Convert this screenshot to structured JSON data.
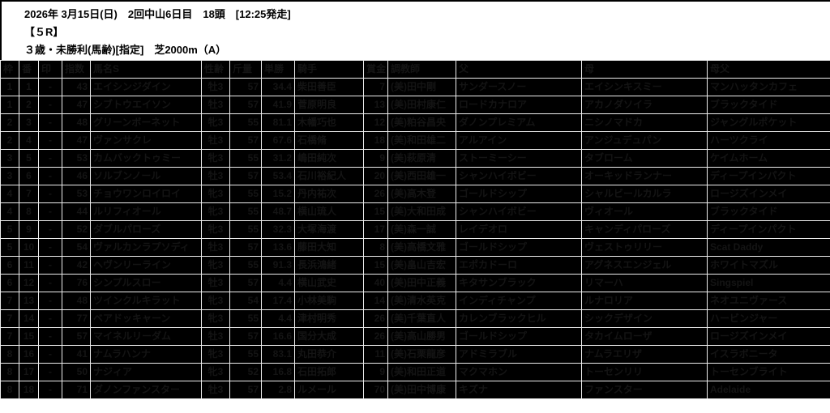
{
  "page": {
    "info_line1": "2026年 3月15日(日)　2回中山6日目　18頭　[12:25発走]",
    "race_number": "【５R】",
    "conditions": "３歳・未勝利(馬齢)[指定]　芝2000m（A）"
  },
  "colors": {
    "header_bg": "#ffffff",
    "header_text": "#000000",
    "table_bg": "#000000",
    "grid_line": "#ededed",
    "table_text": "#141414"
  },
  "table": {
    "columns": [
      {
        "key": "waku",
        "label": "枠",
        "width": 23,
        "align": "center"
      },
      {
        "key": "umaban",
        "label": "番",
        "width": 24,
        "align": "center"
      },
      {
        "key": "shirushi",
        "label": "印",
        "width": 29,
        "align": "center"
      },
      {
        "key": "shisu",
        "label": "指数",
        "width": 35,
        "align": "right"
      },
      {
        "key": "bamei",
        "label": "馬名S",
        "width": 137,
        "align": "left"
      },
      {
        "key": "seirei",
        "label": "性齢",
        "width": 35,
        "align": "center"
      },
      {
        "key": "kinryo",
        "label": "斤量",
        "width": 39,
        "align": "right"
      },
      {
        "key": "tansho",
        "label": "単勝",
        "width": 41,
        "align": "right"
      },
      {
        "key": "kishu",
        "label": "騎手",
        "width": 85,
        "align": "left"
      },
      {
        "key": "shokin",
        "label": "賞金",
        "width": 30,
        "align": "right"
      },
      {
        "key": "chokyoshi",
        "label": "調教師",
        "width": 84,
        "align": "left"
      },
      {
        "key": "chichi",
        "label": "父",
        "width": 155,
        "align": "left"
      },
      {
        "key": "haha",
        "label": "母",
        "width": 155,
        "align": "left"
      },
      {
        "key": "hahachichi",
        "label": "母父",
        "width": 152,
        "align": "left"
      }
    ],
    "rows": [
      [
        "1",
        "1",
        "-",
        "43",
        "エイシンジダイン",
        "牡3",
        "57",
        "34.4",
        "柴田善臣",
        "7",
        "(美)田中剛",
        "サンダースノー",
        "エイシンキスミー",
        "マンハッタンカフェ"
      ],
      [
        "1",
        "2",
        "-",
        "47",
        "シブトウエイソン",
        "牡3",
        "57",
        "41.9",
        "菅原明良",
        "13",
        "(美)田村康仁",
        "ロードカナロア",
        "アカノダソイラ",
        "ブラックタイド"
      ],
      [
        "2",
        "3",
        "-",
        "48",
        "グリーンボーネット",
        "牝3",
        "55",
        "81.1",
        "木幡巧也",
        "12",
        "(美)粕谷昌央",
        "ダノンプレミアム",
        "ニシノマドカ",
        "ジャングルポケット"
      ],
      [
        "2",
        "4",
        "-",
        "47",
        "ヴァンサクレ",
        "牡3",
        "57",
        "67.6",
        "石橋脩",
        "18",
        "(美)和田雄二",
        "アルアイン",
        "アンジュデュパン",
        "ハーツクライ"
      ],
      [
        "3",
        "5",
        "-",
        "53",
        "カムバックトゥミー",
        "牝3",
        "55",
        "31.2",
        "嶋田純次",
        "9",
        "(美)萩原清",
        "ストーミーシー",
        "タブローム",
        "ケイムホーム"
      ],
      [
        "3",
        "6",
        "-",
        "46",
        "ソルブンノール",
        "牡3",
        "57",
        "53.4",
        "石川裕紀人",
        "20",
        "(美)西田雄一",
        "シャンハイボビー",
        "オーキッドランナー",
        "ディープインパクト"
      ],
      [
        "4",
        "7",
        "-",
        "53",
        "チョウワンロイロイ",
        "牝3",
        "55",
        "15.2",
        "丹内祐次",
        "26",
        "(美)高木登",
        "ゴールドシップ",
        "シャルビールカルラ",
        "ロージズインメイ"
      ],
      [
        "4",
        "8",
        "-",
        "44",
        "ルリフィオール",
        "牝3",
        "55",
        "48.7",
        "横山琉人",
        "15",
        "(美)大和田成",
        "シャンハイボビー",
        "ヴィオール",
        "ブラックタイド"
      ],
      [
        "5",
        "9",
        "-",
        "52",
        "ダブルパローズ",
        "牝3",
        "55",
        "32.3",
        "大塚海渡",
        "17",
        "(美)森一誠",
        "レイデオロ",
        "キャンディパローズ",
        "ディープインパクト"
      ],
      [
        "5",
        "10",
        "-",
        "54",
        "ヴァルカンラプソディ",
        "牡3",
        "57",
        "13.6",
        "藤田大知",
        "8",
        "(美)高橋文雅",
        "ゴールドシップ",
        "ヴェストゥリリー",
        "Scat Daddy"
      ],
      [
        "6",
        "11",
        "-",
        "42",
        "ヘヴンリーライン",
        "牝3",
        "55",
        "91.3",
        "長浜鴻緒",
        "15",
        "(美)畠山吉宏",
        "エポカドーロ",
        "アグネスエンジェル",
        "ホワイトマズル"
      ],
      [
        "6",
        "12",
        "-",
        "76",
        "シンプルスロー",
        "牡3",
        "57",
        "4.4",
        "横山武史",
        "40",
        "(美)田中正義",
        "キタサンブラック",
        "リマーハ",
        "Singspiel"
      ],
      [
        "7",
        "13",
        "-",
        "48",
        "ツインクルキラット",
        "牝3",
        "54",
        "17.4",
        "小林美駒",
        "14",
        "(美)清水英克",
        "インディチャンプ",
        "ルナロリア",
        "ネオユニヴァース"
      ],
      [
        "7",
        "14",
        "-",
        "77",
        "ベアドッキャーン",
        "牝3",
        "55",
        "4.4",
        "津村明秀",
        "26",
        "(美)千葉直人",
        "カレンブラックヒル",
        "シックデザイン",
        "ハービンジャー"
      ],
      [
        "7",
        "15",
        "-",
        "57",
        "マイネルリーダム",
        "牡3",
        "57",
        "16.6",
        "国分大成",
        "26",
        "(美)高山勝男",
        "ゴールドシップ",
        "タカイムローザ",
        "ロージズインメイ"
      ],
      [
        "8",
        "16",
        "-",
        "41",
        "ナムラハンナ",
        "牝3",
        "55",
        "83.1",
        "丸田恭介",
        "11",
        "(美)石栗龍彦",
        "アドミラブル",
        "ナムラエリザ",
        "イスラボニータ"
      ],
      [
        "8",
        "17",
        "-",
        "50",
        "ナジィア",
        "牝3",
        "52",
        "16.8",
        "石田拓郎",
        "9",
        "(美)和田正道",
        "マクマホン",
        "トーセンリリ",
        "トーセンブライト"
      ],
      [
        "8",
        "18",
        "-",
        "71",
        "ダノンファンスター",
        "牡3",
        "57",
        "2.8",
        "ルメール",
        "70",
        "(美)田中博康",
        "キズナ",
        "ファンスター",
        "Adelaide"
      ]
    ]
  }
}
